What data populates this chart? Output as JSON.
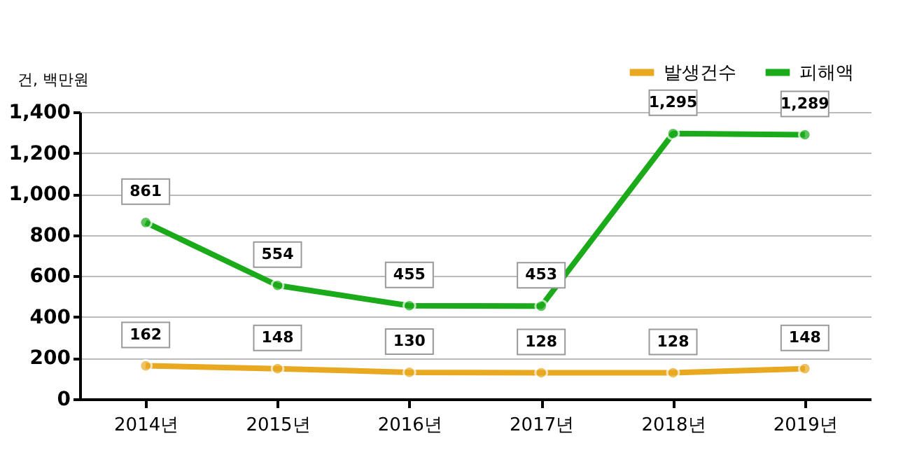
{
  "chart_data": {
    "type": "line",
    "ylabel": "건, 백만원",
    "categories": [
      "2014년",
      "2015년",
      "2016년",
      "2017년",
      "2018년",
      "2019년"
    ],
    "series": [
      {
        "name": "발생건수",
        "color": "#e8a820",
        "values": [
          162,
          148,
          130,
          128,
          128,
          148
        ],
        "value_labels": [
          "162",
          "148",
          "130",
          "128",
          "128",
          "148"
        ]
      },
      {
        "name": "피해액",
        "color": "#1aaa1a",
        "values": [
          861,
          554,
          455,
          453,
          1295,
          1289
        ],
        "value_labels": [
          "861",
          "554",
          "455",
          "453",
          "1,295",
          "1,289"
        ]
      }
    ],
    "ylim": [
      0,
      1400
    ],
    "yticks": [
      0,
      200,
      400,
      600,
      800,
      {
        "value": 1000,
        "label": "1,000"
      },
      {
        "value": 1200,
        "label": "1,200"
      },
      {
        "value": 1400,
        "label": "1,400"
      }
    ],
    "grid": "y",
    "legend": "top right",
    "marker": "circle",
    "line_style": "solid",
    "data_labels": true
  }
}
